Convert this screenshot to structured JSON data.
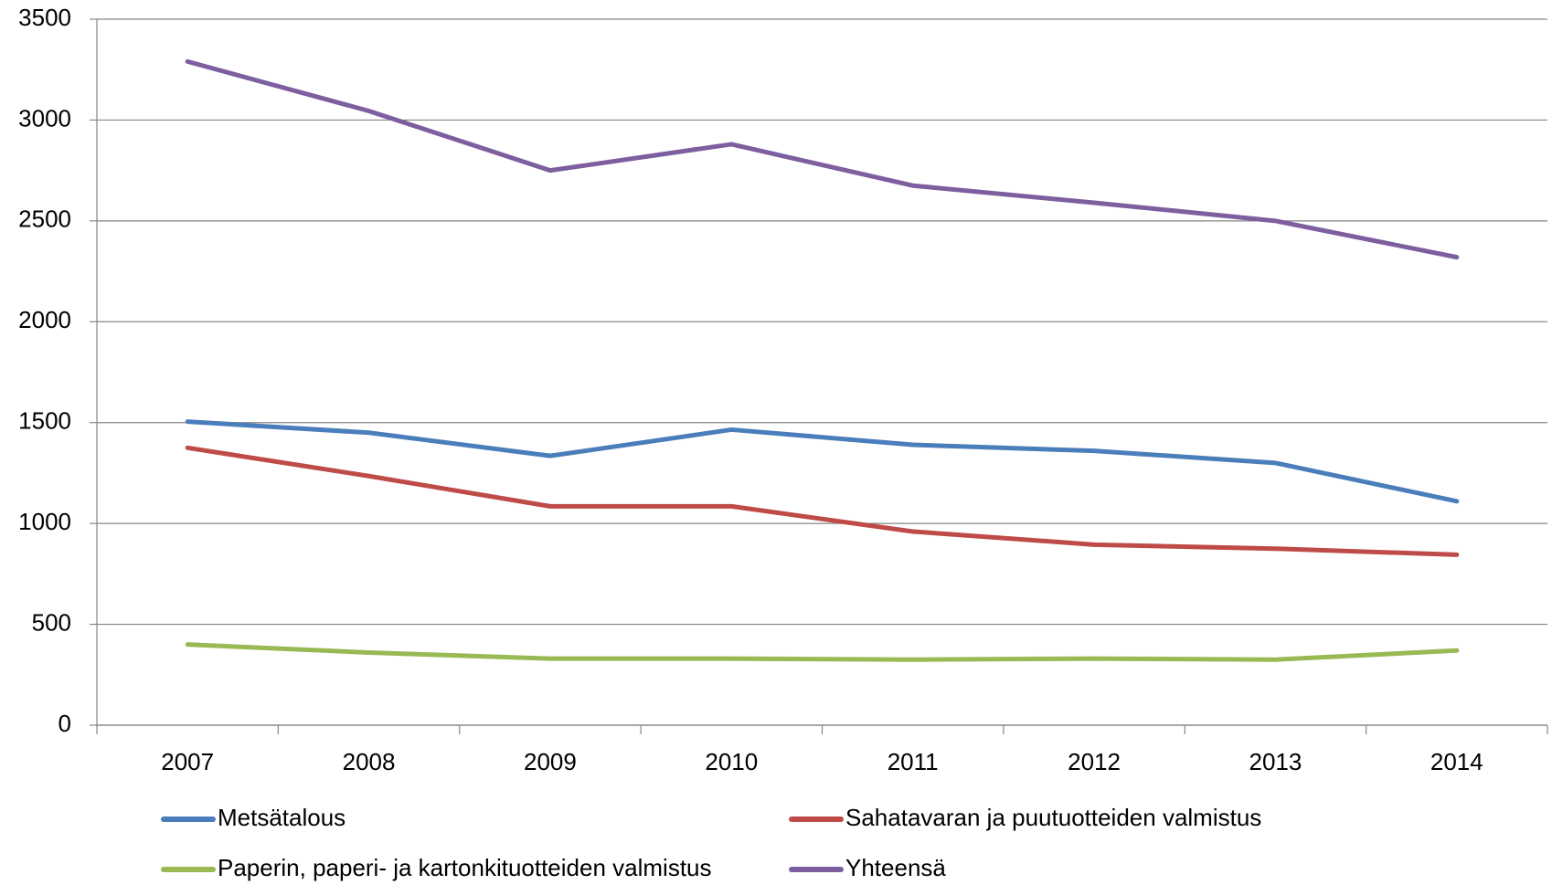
{
  "chart_data": {
    "type": "line",
    "categories": [
      "2007",
      "2008",
      "2009",
      "2010",
      "2011",
      "2012",
      "2013",
      "2014"
    ],
    "series": [
      {
        "name": "Metsätalous",
        "color": "#4a7ebb",
        "values": [
          1505,
          1450,
          1335,
          1465,
          1390,
          1360,
          1300,
          1110
        ]
      },
      {
        "name": "Sahatavaran ja puutuotteiden valmistus",
        "color": "#be4b48",
        "values": [
          1375,
          1235,
          1085,
          1085,
          960,
          895,
          875,
          845
        ]
      },
      {
        "name": "Paperin, paperi- ja kartonkituotteiden valmistus",
        "color": "#98b954",
        "values": [
          400,
          360,
          330,
          330,
          325,
          330,
          325,
          370
        ]
      },
      {
        "name": "Yhteensä",
        "color": "#7d5fa0",
        "values": [
          3290,
          3045,
          2750,
          2880,
          2675,
          2590,
          2500,
          2320
        ]
      }
    ],
    "ylim": [
      0,
      3500
    ],
    "yticks": [
      0,
      500,
      1000,
      1500,
      2000,
      2500,
      3000,
      3500
    ],
    "grid": true,
    "legend": "bottom"
  }
}
